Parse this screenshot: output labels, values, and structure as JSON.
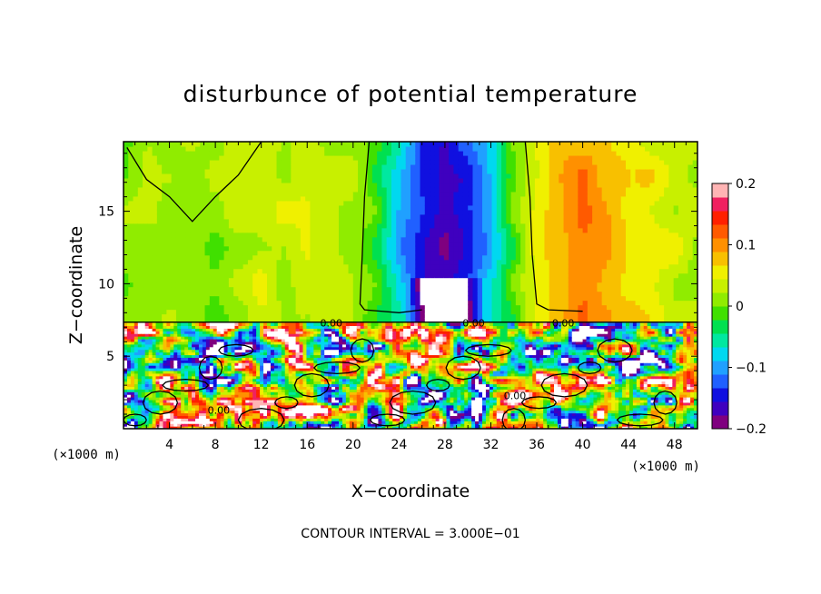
{
  "chart_data": {
    "type": "heatmap",
    "title": "disturbunce of potential temperature",
    "xlabel": "X−coordinate",
    "ylabel": "Z−coordinate",
    "x_unit_left": "(×1000 m)",
    "x_unit_right": "(×1000 m)",
    "footer": "CONTOUR INTERVAL = 3.000E−01",
    "xlim": [
      0,
      50
    ],
    "ylim": [
      0,
      19.8
    ],
    "x_ticks": [
      4,
      8,
      12,
      16,
      20,
      24,
      28,
      32,
      36,
      40,
      44,
      48
    ],
    "x_tick_labels": [
      "4",
      "8",
      "12",
      "16",
      "20",
      "24",
      "28",
      "32",
      "36",
      "40",
      "44",
      "48"
    ],
    "y_ticks": [
      5,
      10,
      15
    ],
    "y_tick_labels": [
      "5",
      "10",
      "15"
    ],
    "colorbar": {
      "min": -0.2,
      "max": 0.2,
      "tick_values": [
        0.2,
        0.1,
        0,
        -0.1,
        -0.2
      ],
      "tick_labels": [
        "0.2",
        "0.1",
        "0",
        "−0.1",
        "−0.2"
      ],
      "colors": [
        "#7f007f",
        "#3f00bf",
        "#1010e0",
        "#2060ff",
        "#20a0ff",
        "#00d8f0",
        "#00e8a0",
        "#00e050",
        "#40e000",
        "#90ec00",
        "#c8f000",
        "#f0f000",
        "#f8c000",
        "#ff9000",
        "#ff5a00",
        "#ff2000",
        "#f02060",
        "#ffb4b4"
      ]
    },
    "contour_labels": [
      {
        "text": "0.00",
        "x": 18.1,
        "z": 7.3
      },
      {
        "text": "0.00",
        "x": 30.5,
        "z": 7.3
      },
      {
        "text": "0.00",
        "x": 38.3,
        "z": 7.3
      },
      {
        "text": "0.00",
        "x": 8.3,
        "z": 1.3
      },
      {
        "text": "0.00",
        "x": 34.1,
        "z": 2.3
      }
    ],
    "upper_layer": {
      "z_bottom": 7.3,
      "profile_x": [
        0,
        4,
        8,
        12,
        16,
        20,
        22,
        24,
        26,
        28,
        30,
        32,
        34,
        36,
        38,
        40,
        42,
        44,
        46,
        48,
        50
      ],
      "profile_value": [
        0.01,
        0.02,
        0.01,
        0.04,
        0.03,
        0.03,
        -0.02,
        -0.09,
        -0.15,
        -0.19,
        -0.16,
        -0.09,
        -0.01,
        0.06,
        0.09,
        0.12,
        0.1,
        0.08,
        0.06,
        0.04,
        0.03
      ]
    },
    "lower_layer": {
      "z_top": 7.3,
      "pattern": "turbulent, values range -0.2 to 0.2 and beyond (white = out of range)"
    }
  }
}
